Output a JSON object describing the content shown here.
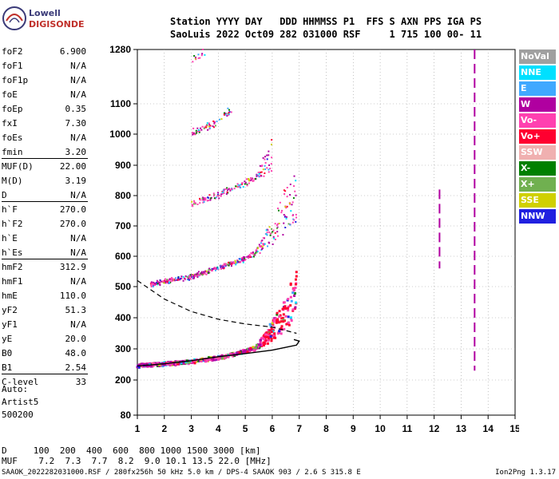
{
  "logo": {
    "line1": "Lowell",
    "line2": "DIGISONDE"
  },
  "header": {
    "line1": "Station YYYY DAY   DDD HHMMSS P1  FFS S AXN PPS IGA PS",
    "line2": "SaoLuis 2022 Oct09 282 031000 RSF     1 715 100 00- 11"
  },
  "params": [
    {
      "name": "foF2",
      "value": "6.900"
    },
    {
      "name": "foF1",
      "value": "N/A"
    },
    {
      "name": "foF1p",
      "value": "N/A"
    },
    {
      "name": "foE",
      "value": "N/A"
    },
    {
      "name": "foEp",
      "value": "0.35"
    },
    {
      "name": "fxI",
      "value": "7.30"
    },
    {
      "name": "foEs",
      "value": "N/A"
    },
    {
      "name": "fmin",
      "value": "3.20"
    },
    {
      "name": "MUF(D)",
      "value": "22.00",
      "sep": true
    },
    {
      "name": "M(D)",
      "value": "3.19"
    },
    {
      "name": "D",
      "value": "N/A"
    },
    {
      "name": "h`F",
      "value": "270.0",
      "sep": true
    },
    {
      "name": "h`F2",
      "value": "270.0"
    },
    {
      "name": "h`E",
      "value": "N/A"
    },
    {
      "name": "h`Es",
      "value": "N/A"
    },
    {
      "name": "hmF2",
      "value": "312.9",
      "sep": true
    },
    {
      "name": "hmF1",
      "value": "N/A"
    },
    {
      "name": "hmE",
      "value": "110.0"
    },
    {
      "name": "yF2",
      "value": "51.3"
    },
    {
      "name": "yF1",
      "value": "N/A"
    },
    {
      "name": "yE",
      "value": "20.0"
    },
    {
      "name": "B0",
      "value": "48.0"
    },
    {
      "name": "B1",
      "value": "2.54"
    },
    {
      "name": "C-level",
      "value": "33",
      "sep": true
    }
  ],
  "auto": {
    "line1": "Auto:",
    "line2": "Artist5",
    "line3": "500200"
  },
  "dmuf": {
    "d_line": "D     100  200  400  600  800 1000 1500 3000 [km]",
    "muf_line": "MUF    7.2  7.3  7.7  8.2  9.0 10.1 13.5 22.0 [MHz]"
  },
  "footer": {
    "left": "SAAOK_2022282031000.RSF / 280fx256h 50 kHz 5.0 km / DPS-4 SAAOK 903 / 2.6 S 315.8 E",
    "right": "Ion2Png 1.3.17"
  },
  "legend": [
    {
      "label": "NoVal",
      "bg": "#a0a0a0",
      "fg": "#ffffff"
    },
    {
      "label": "NNE",
      "bg": "#00e0ff",
      "fg": "#ffffff"
    },
    {
      "label": "E",
      "bg": "#40a8ff",
      "fg": "#ffffff"
    },
    {
      "label": "W",
      "bg": "#b000a0",
      "fg": "#ffffff"
    },
    {
      "label": "Vo-",
      "bg": "#ff40b0",
      "fg": "#ffffff"
    },
    {
      "label": "Vo+",
      "bg": "#ff0030",
      "fg": "#ffffff"
    },
    {
      "label": "SSW",
      "bg": "#f0b0b0",
      "fg": "#ffffff"
    },
    {
      "label": "X-",
      "bg": "#008000",
      "fg": "#ffffff"
    },
    {
      "label": "X+",
      "bg": "#70b050",
      "fg": "#ffffff"
    },
    {
      "label": "SSE",
      "bg": "#d0d000",
      "fg": "#ffffff"
    },
    {
      "label": "NNW",
      "bg": "#2020e0",
      "fg": "#ffffff"
    }
  ],
  "chart_data": {
    "type": "scatter",
    "title": "",
    "xlabel": "",
    "ylabel": "",
    "xlim": [
      1,
      15
    ],
    "x_ticks": [
      1,
      2,
      3,
      4,
      5,
      6,
      7,
      8,
      9,
      10,
      11,
      12,
      13,
      14,
      15
    ],
    "y_ticks": [
      80,
      200,
      300,
      400,
      500,
      600,
      700,
      800,
      900,
      1000,
      1100,
      1280
    ],
    "grid": true,
    "y_scale": "nonlinear (ionogram virtual height, km)",
    "series": [
      {
        "name": "Vo+",
        "color": "#ff0030"
      },
      {
        "name": "Vo-",
        "color": "#ff40b0"
      },
      {
        "name": "W",
        "color": "#b000a0"
      },
      {
        "name": "NNW",
        "color": "#2020e0"
      },
      {
        "name": "X-",
        "color": "#008000"
      },
      {
        "name": "X+",
        "color": "#70b050"
      },
      {
        "name": "SSE",
        "color": "#d0d000"
      },
      {
        "name": "E",
        "color": "#40a8ff"
      },
      {
        "name": "NNE",
        "color": "#00e0ff"
      }
    ],
    "echo_traces": [
      {
        "label": "F2 1-hop",
        "f": [
          1.0,
          2.0,
          3.0,
          4.0,
          5.0,
          5.5,
          6.0,
          6.5,
          6.9
        ],
        "h": [
          245,
          250,
          258,
          270,
          290,
          305,
          330,
          360,
          420
        ]
      },
      {
        "label": "F2 2-hop",
        "f": [
          1.5,
          2.0,
          3.0,
          4.0,
          5.0,
          6.0,
          6.9
        ],
        "h": [
          505,
          515,
          530,
          560,
          590,
          640,
          720
        ]
      },
      {
        "label": "F2 3-hop",
        "f": [
          3.0,
          4.0,
          5.0,
          6.0
        ],
        "h": [
          770,
          800,
          840,
          880
        ]
      },
      {
        "label": "F2 4-hop",
        "f": [
          3.0,
          4.0,
          4.5
        ],
        "h": [
          1000,
          1040,
          1080
        ]
      },
      {
        "label": "F2 5-hop",
        "f": [
          3.0,
          3.5
        ],
        "h": [
          1240,
          1270
        ]
      }
    ],
    "profile_curve": {
      "f": [
        1.0,
        2.0,
        3.0,
        4.0,
        5.0,
        6.0,
        6.5,
        6.9,
        7.0,
        6.8
      ],
      "h": [
        245,
        252,
        262,
        275,
        285,
        296,
        305,
        312,
        325,
        330
      ]
    },
    "virtual_height_curve": {
      "f": [
        1.0,
        2.0,
        3.0,
        4.0,
        5.0,
        6.0,
        6.9
      ],
      "h": [
        520,
        460,
        420,
        395,
        380,
        370,
        350
      ]
    },
    "interference_lines": [
      {
        "f": 12.2,
        "h_from": 560,
        "h_to": 820,
        "color": "#b000a0"
      },
      {
        "f": 13.5,
        "h_from": 230,
        "h_to": 1280,
        "color": "#b000a0"
      }
    ]
  }
}
